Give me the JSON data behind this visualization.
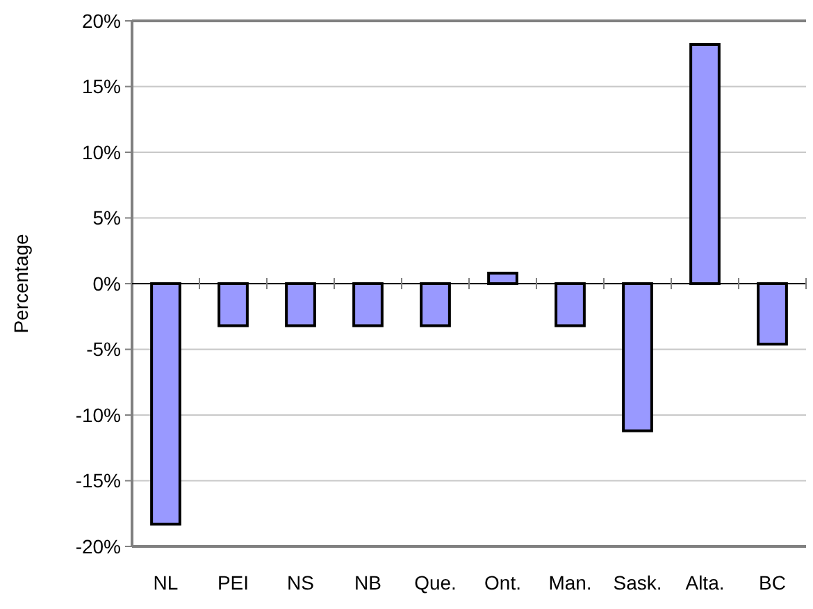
{
  "chart_data": {
    "type": "bar",
    "ylabel": "Percentage",
    "categories": [
      "NL",
      "PEI",
      "NS",
      "NB",
      "Que.",
      "Ont.",
      "Man.",
      "Sask.",
      "Alta.",
      "BC"
    ],
    "values": [
      -18.3,
      -3.2,
      -3.2,
      -3.2,
      -3.2,
      0.8,
      -3.2,
      -11.2,
      18.2,
      -4.6
    ],
    "color": "#9999ff",
    "ylim": [
      -20,
      20
    ],
    "yticks": [
      {
        "value": -20,
        "label": "-20%"
      },
      {
        "value": -15,
        "label": "-15%"
      },
      {
        "value": -10,
        "label": "-10%"
      },
      {
        "value": -5,
        "label": "-5%"
      },
      {
        "value": 0,
        "label": "0%"
      },
      {
        "value": 5,
        "label": "5%"
      },
      {
        "value": 10,
        "label": "10%"
      },
      {
        "value": 15,
        "label": "15%"
      },
      {
        "value": 20,
        "label": "20%"
      }
    ],
    "grid": "y"
  }
}
